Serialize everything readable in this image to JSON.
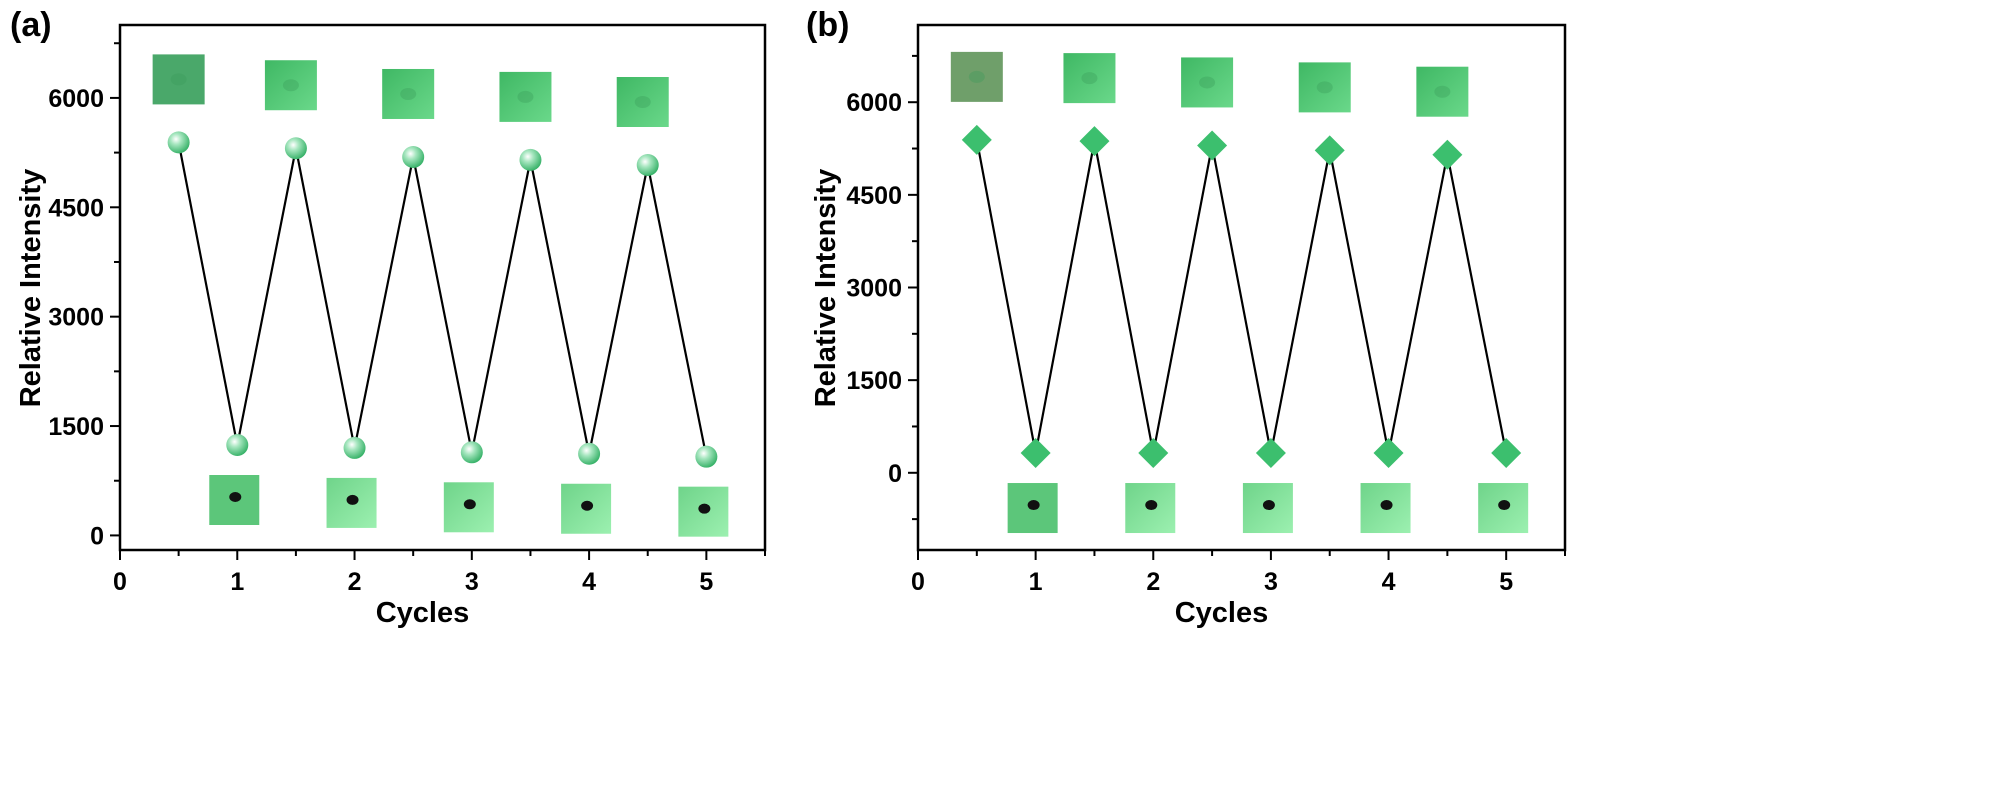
{
  "colors": {
    "marker": "#3cbf6e",
    "line": "#000000",
    "photo_light": "#7fe59a",
    "photo_dark": "#3fae62"
  },
  "chart_data": [
    {
      "type": "line",
      "panel_label": "(a)",
      "xlabel": "Cycles",
      "ylabel": "Relative Intensity",
      "xlim": [
        0,
        5.5
      ],
      "ylim": [
        -200,
        7000
      ],
      "xticks": [
        0,
        1,
        2,
        3,
        4,
        5
      ],
      "yticks": [
        0,
        1500,
        3000,
        4500,
        6000
      ],
      "marker": "sphere",
      "series": [
        {
          "name": "intensity",
          "x": [
            0.5,
            1,
            1.5,
            2,
            2.5,
            3,
            3.5,
            4,
            4.5,
            5
          ],
          "y": [
            5390,
            1240,
            5310,
            1200,
            5190,
            1140,
            5150,
            1120,
            5080,
            1080
          ]
        }
      ]
    },
    {
      "type": "line",
      "panel_label": "(b)",
      "xlabel": "Cycles",
      "ylabel": "Relative Intensity",
      "xlim": [
        0,
        5.5
      ],
      "ylim": [
        -1250,
        7250
      ],
      "xticks": [
        0,
        1,
        2,
        3,
        4,
        5
      ],
      "yticks": [
        0,
        1500,
        3000,
        4500,
        6000
      ],
      "marker": "diamond",
      "series": [
        {
          "name": "intensity",
          "x": [
            0.5,
            1,
            1.5,
            2,
            2.5,
            3,
            3.5,
            4,
            4.5,
            5
          ],
          "y": [
            5390,
            320,
            5370,
            320,
            5300,
            320,
            5220,
            320,
            5150,
            320
          ]
        }
      ]
    }
  ]
}
